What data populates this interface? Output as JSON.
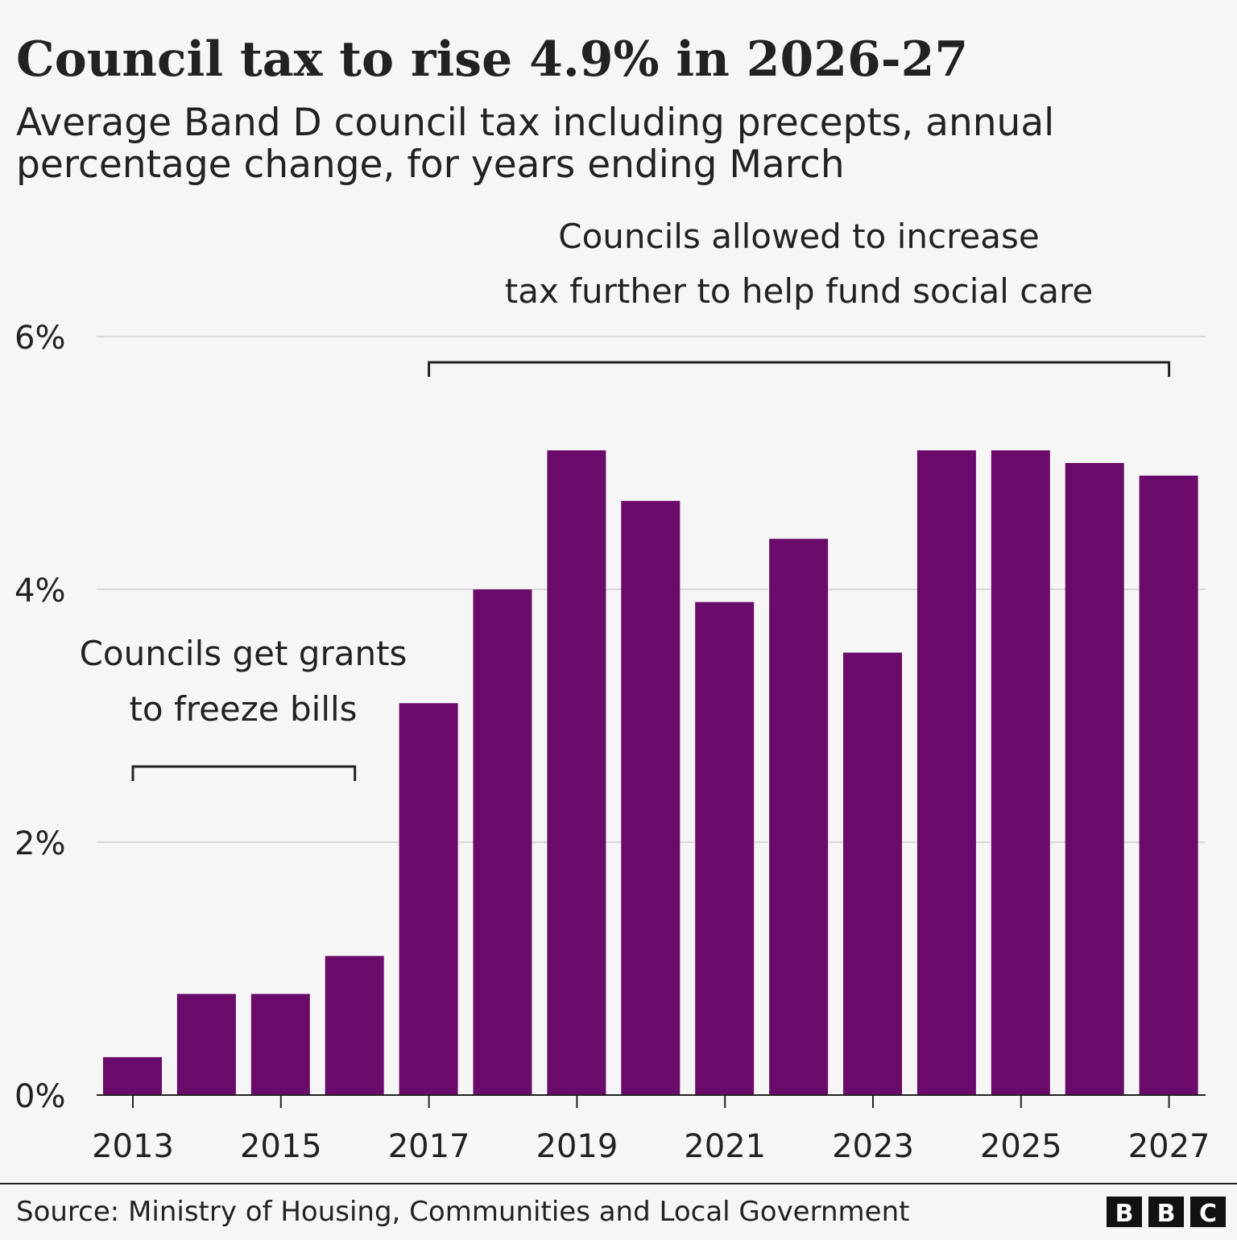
{
  "chart_data": {
    "type": "bar",
    "title": "Council tax to rise 4.9% in 2026-27",
    "subtitle_line1": "Average Band D council tax including precepts, annual",
    "subtitle_line2": "percentage change, for years ending March",
    "xlabel": "",
    "ylabel": "",
    "ylim": [
      0,
      6
    ],
    "yticks": [
      0,
      2,
      4,
      6
    ],
    "ytick_labels": [
      "0%",
      "2%",
      "4%",
      "6%"
    ],
    "grid": true,
    "categories": [
      2013,
      2014,
      2015,
      2016,
      2017,
      2018,
      2019,
      2020,
      2021,
      2022,
      2023,
      2024,
      2025,
      2026,
      2027
    ],
    "values": [
      0.3,
      0.8,
      0.8,
      1.1,
      3.1,
      4.0,
      5.1,
      4.7,
      3.9,
      4.4,
      3.5,
      5.1,
      5.1,
      5.0,
      4.9
    ],
    "xtick_labels": [
      "2013",
      "2015",
      "2017",
      "2019",
      "2021",
      "2023",
      "2025",
      "2027"
    ],
    "bar_color": "#6a0a6b",
    "annotations": [
      {
        "lines": [
          "Councils get grants",
          "to freeze bills"
        ],
        "from": 2013,
        "to": 2016
      },
      {
        "lines": [
          "Councils allowed to increase",
          "tax further to help fund social care"
        ],
        "from": 2017,
        "to": 2027
      }
    ]
  },
  "footer": {
    "source": "Source: Ministry of Housing, Communities and Local Government",
    "logo": [
      "B",
      "B",
      "C"
    ]
  }
}
